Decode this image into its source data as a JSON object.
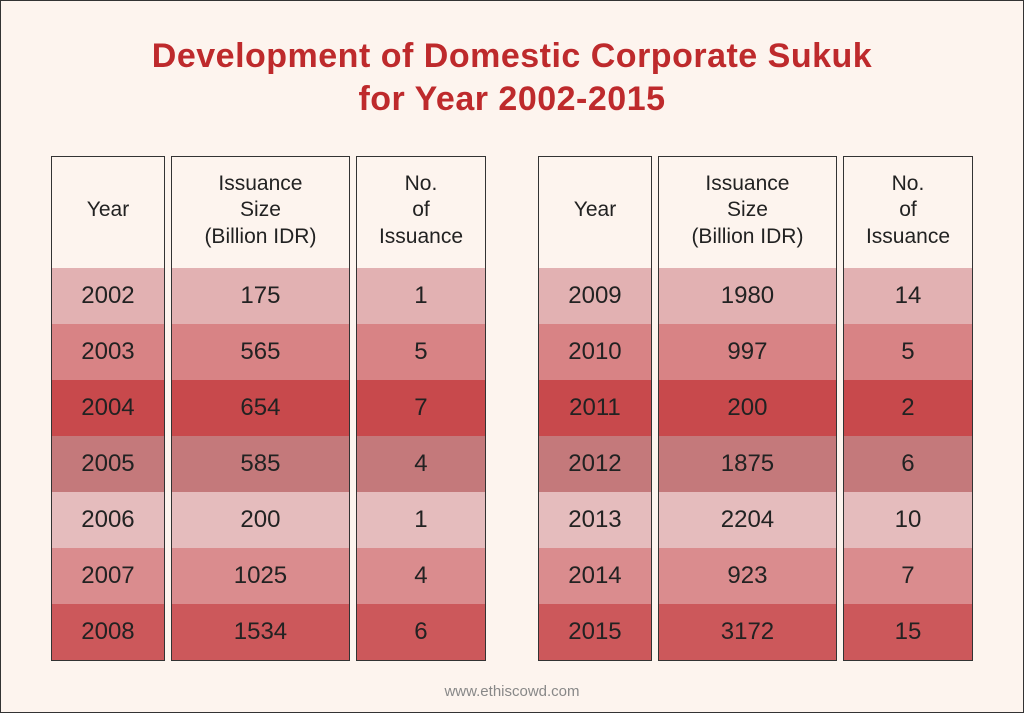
{
  "title_line1": "Development of Domestic Corporate Sukuk",
  "title_line2": "for Year 2002-2015",
  "footer": "www.ethiscowd.com",
  "columns": {
    "year": "Year",
    "size_l1": "Issuance",
    "size_l2": "Size",
    "size_l3": "(Billion IDR)",
    "count_l1": "No.",
    "count_l2": "of",
    "count_l3": "Issuance"
  },
  "row_colors": [
    "#e2b1b2",
    "#d88385",
    "#c8494c",
    "#c4797b",
    "#e5bcbd",
    "#da8c8e",
    "#cc585b"
  ],
  "left": [
    {
      "year": "2002",
      "size": "175",
      "count": "1"
    },
    {
      "year": "2003",
      "size": "565",
      "count": "5"
    },
    {
      "year": "2004",
      "size": "654",
      "count": "7"
    },
    {
      "year": "2005",
      "size": "585",
      "count": "4"
    },
    {
      "year": "2006",
      "size": "200",
      "count": "1"
    },
    {
      "year": "2007",
      "size": "1025",
      "count": "4"
    },
    {
      "year": "2008",
      "size": "1534",
      "count": "6"
    }
  ],
  "right": [
    {
      "year": "2009",
      "size": "1980",
      "count": "14"
    },
    {
      "year": "2010",
      "size": "997",
      "count": "5"
    },
    {
      "year": "2011",
      "size": "200",
      "count": "2"
    },
    {
      "year": "2012",
      "size": "1875",
      "count": "6"
    },
    {
      "year": "2013",
      "size": "2204",
      "count": "10"
    },
    {
      "year": "2014",
      "size": "923",
      "count": "7"
    },
    {
      "year": "2015",
      "size": "3172",
      "count": "15"
    }
  ]
}
